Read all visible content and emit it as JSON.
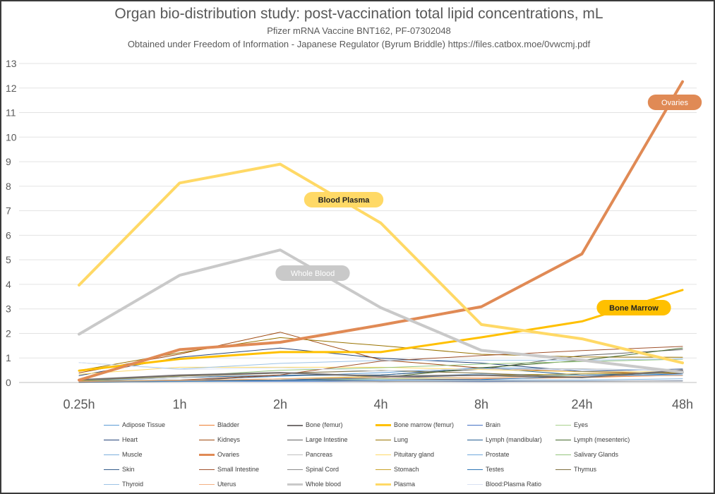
{
  "title": "Organ bio-distribution study: post-vaccination total lipid concentrations, mL",
  "subtitle1": "Pfizer mRNA Vaccine BNT162, PF-07302048",
  "subtitle2": "Obtained under Freedom of Information - Japanese Regulator (Byrum Briddle) https://files.catbox.moe/0vwcmj.pdf",
  "chart_data": {
    "type": "line",
    "title": "Organ bio-distribution study: post-vaccination total lipid concentrations, mL",
    "categories": [
      "0.25h",
      "1h",
      "2h",
      "4h",
      "8h",
      "24h",
      "48h"
    ],
    "ylim": [
      0,
      13
    ],
    "yticks": [
      "0",
      "1",
      "2",
      "3",
      "4",
      "5",
      "6",
      "7",
      "8",
      "9",
      "10",
      "11",
      "12",
      "13"
    ],
    "grid": true,
    "legend_position": "bottom",
    "series": [
      {
        "name": "Adipose Tissue",
        "color": "#5b9bd5",
        "width": 1,
        "values": [
          0.06,
          0.1,
          0.25,
          0.4,
          0.6,
          0.55,
          0.5
        ]
      },
      {
        "name": "Bladder",
        "color": "#ed7d31",
        "width": 1,
        "values": [
          0.03,
          0.05,
          0.1,
          0.1,
          0.15,
          0.2,
          0.3
        ]
      },
      {
        "name": "Bone (femur)",
        "color": "#767171",
        "width": 2,
        "values": [
          0.11,
          0.3,
          0.4,
          0.25,
          0.3,
          0.2,
          0.5
        ]
      },
      {
        "name": "Bone marrow (femur)",
        "color": "#ffc000",
        "width": 3,
        "values": [
          0.48,
          0.96,
          1.24,
          1.24,
          1.84,
          2.49,
          3.77
        ]
      },
      {
        "name": "Brain",
        "color": "#4472c4",
        "width": 1,
        "values": [
          0.05,
          0.05,
          0.05,
          0.05,
          0.04,
          0.05,
          0.07
        ]
      },
      {
        "name": "Eyes",
        "color": "#a9d18e",
        "width": 1,
        "values": [
          0.01,
          0.05,
          0.1,
          0.15,
          0.2,
          0.3,
          0.4
        ]
      },
      {
        "name": "Heart",
        "color": "#264478",
        "width": 1,
        "values": [
          0.28,
          1.03,
          1.4,
          0.99,
          0.79,
          0.45,
          0.55
        ]
      },
      {
        "name": "Kidneys",
        "color": "#9e480e",
        "width": 1,
        "values": [
          0.39,
          1.16,
          2.05,
          0.92,
          0.59,
          0.43,
          0.36
        ]
      },
      {
        "name": "Large Intestine",
        "color": "#636363",
        "width": 1,
        "values": [
          0.01,
          0.05,
          0.29,
          0.31,
          0.54,
          1.1,
          1.34
        ]
      },
      {
        "name": "Lung",
        "color": "#997300",
        "width": 1,
        "values": [
          0.49,
          1.21,
          1.83,
          1.5,
          1.15,
          1.04,
          1.03
        ]
      },
      {
        "name": "Lymph (mandibular)",
        "color": "#255e91",
        "width": 1,
        "values": [
          0.06,
          0.2,
          0.3,
          0.3,
          0.6,
          0.3,
          0.4
        ]
      },
      {
        "name": "Lymph (mesenteric)",
        "color": "#43682b",
        "width": 1,
        "values": [
          0.05,
          0.1,
          0.1,
          0.2,
          0.6,
          0.9,
          1.4
        ]
      },
      {
        "name": "Muscle",
        "color": "#7cafdd",
        "width": 1,
        "values": [
          0.02,
          0.04,
          0.09,
          0.1,
          0.1,
          0.1,
          0.15
        ]
      },
      {
        "name": "Ovaries",
        "color": "#e08a55",
        "width": 4,
        "values": [
          0.1,
          1.34,
          1.64,
          2.34,
          3.09,
          5.24,
          12.26
        ]
      },
      {
        "name": "Pancreas",
        "color": "#bfbfbf",
        "width": 1,
        "values": [
          0.08,
          0.2,
          0.39,
          0.47,
          0.55,
          0.56,
          0.47
        ]
      },
      {
        "name": "Pituitary gland",
        "color": "#ffd966",
        "width": 1,
        "values": [
          0.34,
          0.62,
          0.62,
          0.62,
          0.53,
          0.43,
          0.44
        ]
      },
      {
        "name": "Prostate",
        "color": "#6fa8dc",
        "width": 1,
        "values": [
          0.06,
          0.1,
          0.1,
          0.2,
          0.35,
          0.3,
          0.3
        ]
      },
      {
        "name": "Salivary Glands",
        "color": "#93c47d",
        "width": 1,
        "values": [
          0.08,
          0.25,
          0.5,
          0.6,
          0.75,
          0.85,
          0.95
        ]
      },
      {
        "name": "Skin",
        "color": "#335c8a",
        "width": 1,
        "values": [
          0.02,
          0.06,
          0.1,
          0.19,
          0.3,
          0.35,
          0.4
        ]
      },
      {
        "name": "Small Intestine",
        "color": "#a0522d",
        "width": 1,
        "values": [
          0.03,
          0.1,
          0.31,
          0.87,
          1.1,
          1.3,
          1.47
        ]
      },
      {
        "name": "Spinal Cord",
        "color": "#8c8c8c",
        "width": 1,
        "values": [
          0.04,
          0.1,
          0.1,
          0.04,
          0.06,
          0.05,
          0.06
        ]
      },
      {
        "name": "Stomach",
        "color": "#c9a227",
        "width": 1,
        "values": [
          0.06,
          0.08,
          0.15,
          0.25,
          0.3,
          0.35,
          0.4
        ]
      },
      {
        "name": "Testes",
        "color": "#2e75b6",
        "width": 1,
        "values": [
          0.04,
          0.05,
          0.08,
          0.1,
          0.12,
          0.25,
          0.35
        ]
      },
      {
        "name": "Thymus",
        "color": "#7f6f3f",
        "width": 1,
        "values": [
          0.09,
          0.26,
          0.38,
          0.49,
          0.38,
          0.22,
          0.45
        ]
      },
      {
        "name": "Thyroid",
        "color": "#9dc3e6",
        "width": 1,
        "values": [
          0.81,
          0.55,
          0.78,
          0.9,
          0.91,
          0.91,
          0.96
        ]
      },
      {
        "name": "Uterus",
        "color": "#f4b183",
        "width": 1,
        "values": [
          0.04,
          0.08,
          0.15,
          0.2,
          0.2,
          0.25,
          0.28
        ]
      },
      {
        "name": "Whole blood",
        "color": "#c9c9c9",
        "width": 4,
        "values": [
          1.97,
          4.37,
          5.4,
          3.05,
          1.31,
          0.91,
          0.42
        ]
      },
      {
        "name": "Plasma",
        "color": "#ffd966",
        "width": 4,
        "values": [
          3.97,
          8.13,
          8.9,
          6.5,
          2.36,
          1.78,
          0.8
        ]
      },
      {
        "name": "Blood:Plasma Ratio",
        "color": "#d9e1f2",
        "width": 1,
        "values": [
          0.81,
          0.53,
          0.6,
          0.47,
          0.56,
          0.51,
          0.52
        ]
      }
    ],
    "annotations": [
      {
        "text": "Ovaries",
        "series": "Ovaries",
        "color": "#e08a55"
      },
      {
        "text": "Blood Plasma",
        "series": "Plasma",
        "color": "#ffd966"
      },
      {
        "text": "Whole Blood",
        "series": "Whole blood",
        "color": "#c9c9c9"
      },
      {
        "text": "Bone Marrow",
        "series": "Bone marrow (femur)",
        "color": "#ffc000"
      }
    ]
  }
}
